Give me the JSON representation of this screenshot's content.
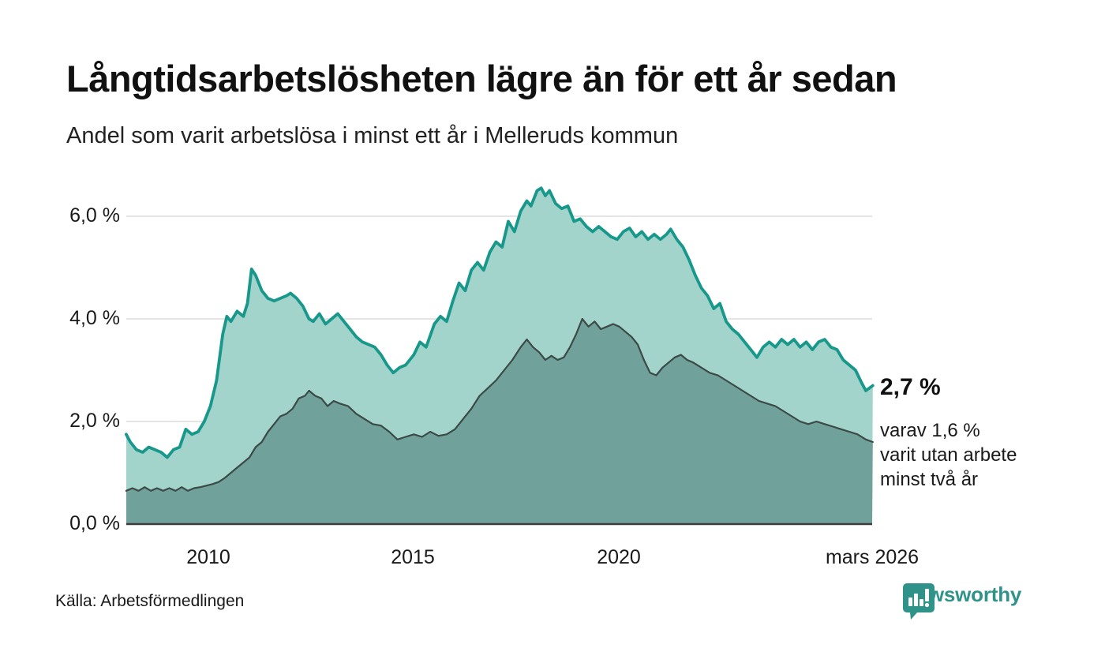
{
  "header": {
    "title": "Långtidsarbetslösheten lägre än för ett år sedan",
    "subtitle": "Andel som varit arbetslösa i minst ett år i Melleruds kommun"
  },
  "annotation": {
    "value": "2,7 %",
    "detail_lines": [
      "varav 1,6 %",
      "varit utan arbete",
      "minst två år"
    ]
  },
  "footer": {
    "source": "Källa: Arbetsförmedlingen",
    "brand": "Newsworthy"
  },
  "colors": {
    "total_line": "#18988b",
    "total_fill": "#a2d4cc",
    "two_year_line": "#3b4a47",
    "two_year_fill": "#70a29b",
    "grid": "#e4e4e4",
    "baseline": "#3d3d3d",
    "brand_teal": "#2f9389"
  },
  "chart_data": {
    "type": "area",
    "title": "Långtidsarbetslösheten lägre än för ett år sedan",
    "subtitle": "Andel som varit arbetslösa i minst ett år i Melleruds kommun",
    "ylabel": "",
    "xlabel": "",
    "ylim": [
      0,
      6.7
    ],
    "xlim": [
      2008.0,
      2026.25
    ],
    "grid": true,
    "legend_position": "none",
    "yticks": [
      {
        "value": 0.0,
        "label": "0,0 %"
      },
      {
        "value": 2.0,
        "label": "2,0 %"
      },
      {
        "value": 4.0,
        "label": "4,0 %"
      },
      {
        "value": 6.0,
        "label": "6,0 %"
      }
    ],
    "xticks": [
      {
        "value": 2010,
        "label": "2010"
      },
      {
        "value": 2015,
        "label": "2015"
      },
      {
        "value": 2020,
        "label": "2020"
      },
      {
        "value": 2026.17,
        "label": "mars 2026"
      }
    ],
    "end_labels": {
      "total": "2,7 %",
      "two_year": "varav 1,6 % varit utan arbete minst två år"
    },
    "series": [
      {
        "name": "Arbetslösa minst ett år",
        "unit": "%",
        "x": [
          2008.0,
          2008.1,
          2008.25,
          2008.4,
          2008.55,
          2008.7,
          2008.85,
          2009.0,
          2009.15,
          2009.3,
          2009.45,
          2009.6,
          2009.75,
          2009.9,
          2010.05,
          2010.2,
          2010.35,
          2010.45,
          2010.55,
          2010.7,
          2010.85,
          2010.95,
          2011.05,
          2011.15,
          2011.3,
          2011.45,
          2011.6,
          2011.75,
          2011.9,
          2012.0,
          2012.15,
          2012.3,
          2012.45,
          2012.55,
          2012.7,
          2012.85,
          2013.0,
          2013.15,
          2013.3,
          2013.45,
          2013.6,
          2013.75,
          2013.9,
          2014.05,
          2014.2,
          2014.35,
          2014.5,
          2014.65,
          2014.8,
          2015.0,
          2015.15,
          2015.3,
          2015.5,
          2015.65,
          2015.8,
          2015.95,
          2016.1,
          2016.25,
          2016.4,
          2016.55,
          2016.7,
          2016.85,
          2017.0,
          2017.15,
          2017.3,
          2017.45,
          2017.6,
          2017.75,
          2017.85,
          2018.0,
          2018.1,
          2018.2,
          2018.3,
          2018.45,
          2018.6,
          2018.75,
          2018.9,
          2019.05,
          2019.2,
          2019.35,
          2019.5,
          2019.65,
          2019.8,
          2019.95,
          2020.1,
          2020.25,
          2020.4,
          2020.55,
          2020.7,
          2020.85,
          2021.0,
          2021.15,
          2021.25,
          2021.4,
          2021.55,
          2021.7,
          2021.85,
          2022.0,
          2022.15,
          2022.3,
          2022.45,
          2022.6,
          2022.75,
          2022.9,
          2023.05,
          2023.2,
          2023.35,
          2023.5,
          2023.65,
          2023.8,
          2023.95,
          2024.1,
          2024.25,
          2024.4,
          2024.55,
          2024.7,
          2024.85,
          2025.0,
          2025.15,
          2025.3,
          2025.45,
          2025.6,
          2025.75,
          2025.9,
          2026.0,
          2026.17
        ],
        "values": [
          1.75,
          1.6,
          1.45,
          1.4,
          1.5,
          1.45,
          1.4,
          1.3,
          1.45,
          1.5,
          1.85,
          1.75,
          1.8,
          2.0,
          2.3,
          2.8,
          3.7,
          4.05,
          3.95,
          4.15,
          4.05,
          4.3,
          4.97,
          4.85,
          4.55,
          4.4,
          4.35,
          4.4,
          4.45,
          4.5,
          4.4,
          4.25,
          4.0,
          3.95,
          4.1,
          3.9,
          4.0,
          4.1,
          3.95,
          3.8,
          3.65,
          3.55,
          3.5,
          3.45,
          3.3,
          3.1,
          2.95,
          3.05,
          3.1,
          3.3,
          3.55,
          3.45,
          3.9,
          4.05,
          3.95,
          4.35,
          4.7,
          4.55,
          4.95,
          5.1,
          4.95,
          5.3,
          5.5,
          5.4,
          5.9,
          5.7,
          6.1,
          6.3,
          6.2,
          6.5,
          6.55,
          6.4,
          6.5,
          6.25,
          6.15,
          6.2,
          5.9,
          5.95,
          5.8,
          5.7,
          5.8,
          5.7,
          5.6,
          5.55,
          5.7,
          5.77,
          5.6,
          5.7,
          5.55,
          5.65,
          5.55,
          5.65,
          5.75,
          5.55,
          5.4,
          5.15,
          4.85,
          4.6,
          4.45,
          4.2,
          4.3,
          3.95,
          3.8,
          3.7,
          3.55,
          3.4,
          3.25,
          3.45,
          3.55,
          3.45,
          3.6,
          3.5,
          3.6,
          3.45,
          3.55,
          3.4,
          3.55,
          3.6,
          3.45,
          3.4,
          3.2,
          3.1,
          3.0,
          2.75,
          2.6,
          2.7
        ]
      },
      {
        "name": "Varav arbetslösa minst två år",
        "unit": "%",
        "x": [
          2008.0,
          2008.15,
          2008.3,
          2008.45,
          2008.6,
          2008.75,
          2008.9,
          2009.05,
          2009.2,
          2009.35,
          2009.5,
          2009.65,
          2009.8,
          2009.95,
          2010.1,
          2010.25,
          2010.4,
          2010.55,
          2010.7,
          2010.85,
          2011.0,
          2011.15,
          2011.3,
          2011.45,
          2011.6,
          2011.75,
          2011.9,
          2012.05,
          2012.2,
          2012.35,
          2012.45,
          2012.6,
          2012.75,
          2012.9,
          2013.05,
          2013.2,
          2013.4,
          2013.6,
          2013.8,
          2014.0,
          2014.2,
          2014.4,
          2014.6,
          2014.8,
          2015.0,
          2015.2,
          2015.4,
          2015.6,
          2015.8,
          2016.0,
          2016.2,
          2016.4,
          2016.6,
          2016.8,
          2017.0,
          2017.2,
          2017.4,
          2017.6,
          2017.75,
          2017.9,
          2018.05,
          2018.2,
          2018.35,
          2018.5,
          2018.65,
          2018.8,
          2018.95,
          2019.1,
          2019.25,
          2019.4,
          2019.55,
          2019.7,
          2019.85,
          2020.0,
          2020.15,
          2020.3,
          2020.45,
          2020.6,
          2020.75,
          2020.9,
          2021.05,
          2021.2,
          2021.35,
          2021.5,
          2021.65,
          2021.8,
          2022.0,
          2022.2,
          2022.4,
          2022.6,
          2022.8,
          2023.0,
          2023.2,
          2023.4,
          2023.6,
          2023.8,
          2024.0,
          2024.2,
          2024.4,
          2024.6,
          2024.8,
          2025.0,
          2025.2,
          2025.4,
          2025.6,
          2025.8,
          2026.0,
          2026.17
        ],
        "values": [
          0.65,
          0.7,
          0.65,
          0.72,
          0.65,
          0.7,
          0.65,
          0.7,
          0.65,
          0.72,
          0.65,
          0.7,
          0.72,
          0.75,
          0.78,
          0.82,
          0.9,
          1.0,
          1.1,
          1.2,
          1.3,
          1.5,
          1.6,
          1.8,
          1.95,
          2.1,
          2.15,
          2.25,
          2.45,
          2.5,
          2.6,
          2.5,
          2.45,
          2.3,
          2.4,
          2.35,
          2.3,
          2.15,
          2.05,
          1.95,
          1.92,
          1.8,
          1.65,
          1.7,
          1.75,
          1.7,
          1.8,
          1.72,
          1.75,
          1.85,
          2.05,
          2.25,
          2.5,
          2.65,
          2.8,
          3.0,
          3.2,
          3.45,
          3.6,
          3.45,
          3.35,
          3.2,
          3.28,
          3.2,
          3.25,
          3.45,
          3.7,
          4.0,
          3.85,
          3.95,
          3.8,
          3.85,
          3.9,
          3.85,
          3.75,
          3.65,
          3.5,
          3.2,
          2.95,
          2.9,
          3.05,
          3.15,
          3.25,
          3.3,
          3.2,
          3.15,
          3.05,
          2.95,
          2.9,
          2.8,
          2.7,
          2.6,
          2.5,
          2.4,
          2.35,
          2.3,
          2.2,
          2.1,
          2.0,
          1.95,
          2.0,
          1.95,
          1.9,
          1.85,
          1.8,
          1.75,
          1.65,
          1.6
        ]
      }
    ]
  }
}
